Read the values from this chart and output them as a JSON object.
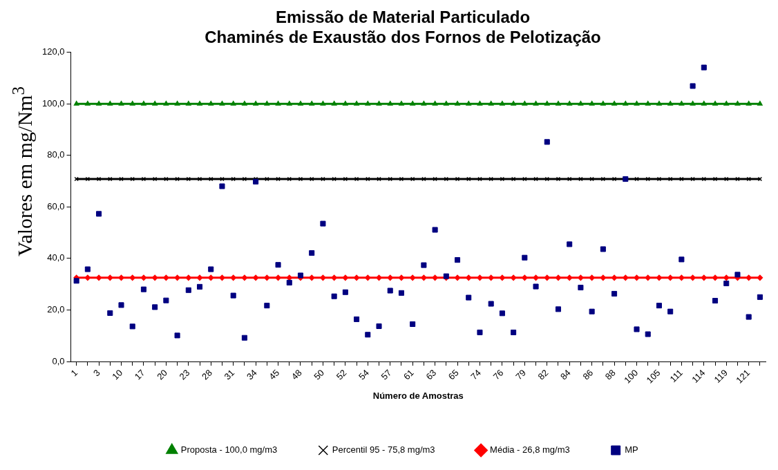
{
  "chart_data": {
    "type": "scatter",
    "title": "Emissão de Material Particulado",
    "subtitle": "Chaminés de Exaustão dos Fornos de Pelotização",
    "xlabel": "Número de Amostras",
    "ylabel": "Valores em mg/Nm$^{3}$",
    "categories": [
      "1",
      null,
      "3",
      null,
      "10",
      null,
      "17",
      null,
      "20",
      null,
      "23",
      null,
      "28",
      null,
      "31",
      null,
      "34",
      null,
      "45",
      null,
      "48",
      null,
      "50",
      null,
      "52",
      null,
      "54",
      null,
      "57",
      null,
      "61",
      null,
      "63",
      null,
      "65",
      null,
      "74",
      null,
      "76",
      null,
      "79",
      null,
      "82",
      null,
      "84",
      null,
      "86",
      null,
      "88",
      null,
      "100",
      null,
      "105",
      null,
      "111",
      null,
      "114",
      null,
      "119",
      null,
      "121",
      null
    ],
    "ylim": [
      0,
      120
    ],
    "yticks": [
      {
        "value": 0,
        "label": "0,0"
      },
      {
        "value": 20,
        "label": "20,0"
      },
      {
        "value": 40,
        "label": "40,0"
      },
      {
        "value": 60,
        "label": "60,0"
      },
      {
        "value": 80,
        "label": "80,0"
      },
      {
        "value": 100,
        "label": "100,0"
      },
      {
        "value": 120,
        "label": "120,0"
      }
    ],
    "grid": false,
    "legend": "bottom",
    "series": [
      {
        "name": "Proposta - 100,0 mg/m3",
        "type": "line",
        "color": "#008000",
        "marker": "triangle",
        "values": [
          100,
          100,
          100,
          100,
          100,
          100,
          100,
          100,
          100,
          100,
          100,
          100,
          100,
          100,
          100,
          100,
          100,
          100,
          100,
          100,
          100,
          100,
          100,
          100,
          100,
          100,
          100,
          100,
          100,
          100,
          100,
          100,
          100,
          100,
          100,
          100,
          100,
          100,
          100,
          100,
          100,
          100,
          100,
          100,
          100,
          100,
          100,
          100,
          100,
          100,
          100,
          100,
          100,
          100,
          100,
          100,
          100,
          100,
          100,
          100,
          100,
          100
        ]
      },
      {
        "name": "Percentil 95 - 75,8 mg/m3",
        "type": "line",
        "color": "#000000",
        "marker": "cross",
        "values": [
          70.8,
          70.8,
          70.8,
          70.8,
          70.8,
          70.8,
          70.8,
          70.8,
          70.8,
          70.8,
          70.8,
          70.8,
          70.8,
          70.8,
          70.8,
          70.8,
          70.8,
          70.8,
          70.8,
          70.8,
          70.8,
          70.8,
          70.8,
          70.8,
          70.8,
          70.8,
          70.8,
          70.8,
          70.8,
          70.8,
          70.8,
          70.8,
          70.8,
          70.8,
          70.8,
          70.8,
          70.8,
          70.8,
          70.8,
          70.8,
          70.8,
          70.8,
          70.8,
          70.8,
          70.8,
          70.8,
          70.8,
          70.8,
          70.8,
          70.8,
          70.8,
          70.8,
          70.8,
          70.8,
          70.8,
          70.8,
          70.8,
          70.8,
          70.8,
          70.8,
          70.8,
          70.8
        ]
      },
      {
        "name": "Média - 26,8 mg/m3",
        "type": "line",
        "color": "#ff0000",
        "marker": "diamond",
        "values": [
          32.5,
          32.5,
          32.5,
          32.5,
          32.5,
          32.5,
          32.5,
          32.5,
          32.5,
          32.5,
          32.5,
          32.5,
          32.5,
          32.5,
          32.5,
          32.5,
          32.5,
          32.5,
          32.5,
          32.5,
          32.5,
          32.5,
          32.5,
          32.5,
          32.5,
          32.5,
          32.5,
          32.5,
          32.5,
          32.5,
          32.5,
          32.5,
          32.5,
          32.5,
          32.5,
          32.5,
          32.5,
          32.5,
          32.5,
          32.5,
          32.5,
          32.5,
          32.5,
          32.5,
          32.5,
          32.5,
          32.5,
          32.5,
          32.5,
          32.5,
          32.5,
          32.5,
          32.5,
          32.5,
          32.5,
          32.5,
          32.5,
          32.5,
          32.5,
          32.5,
          32.5,
          32.5
        ]
      },
      {
        "name": "MP",
        "type": "scatter",
        "color": "#000080",
        "marker": "square",
        "values": [
          31.3,
          35.8,
          57.3,
          18.8,
          21.9,
          13.6,
          28.0,
          21.1,
          23.7,
          10.1,
          27.7,
          29.0,
          35.8,
          68.0,
          25.6,
          9.2,
          69.8,
          21.7,
          37.5,
          30.6,
          33.4,
          42.1,
          53.5,
          25.3,
          26.9,
          16.4,
          10.4,
          13.7,
          27.5,
          26.6,
          14.5,
          37.4,
          51.1,
          33.1,
          39.4,
          24.8,
          11.3,
          22.4,
          18.7,
          11.3,
          40.3,
          29.1,
          85.2,
          20.3,
          45.5,
          28.7,
          19.4,
          43.6,
          26.3,
          70.8,
          12.5,
          10.6,
          21.7,
          19.4,
          39.6,
          106.9,
          114.1,
          23.6,
          30.3,
          33.7,
          17.3,
          25.0
        ]
      }
    ]
  }
}
